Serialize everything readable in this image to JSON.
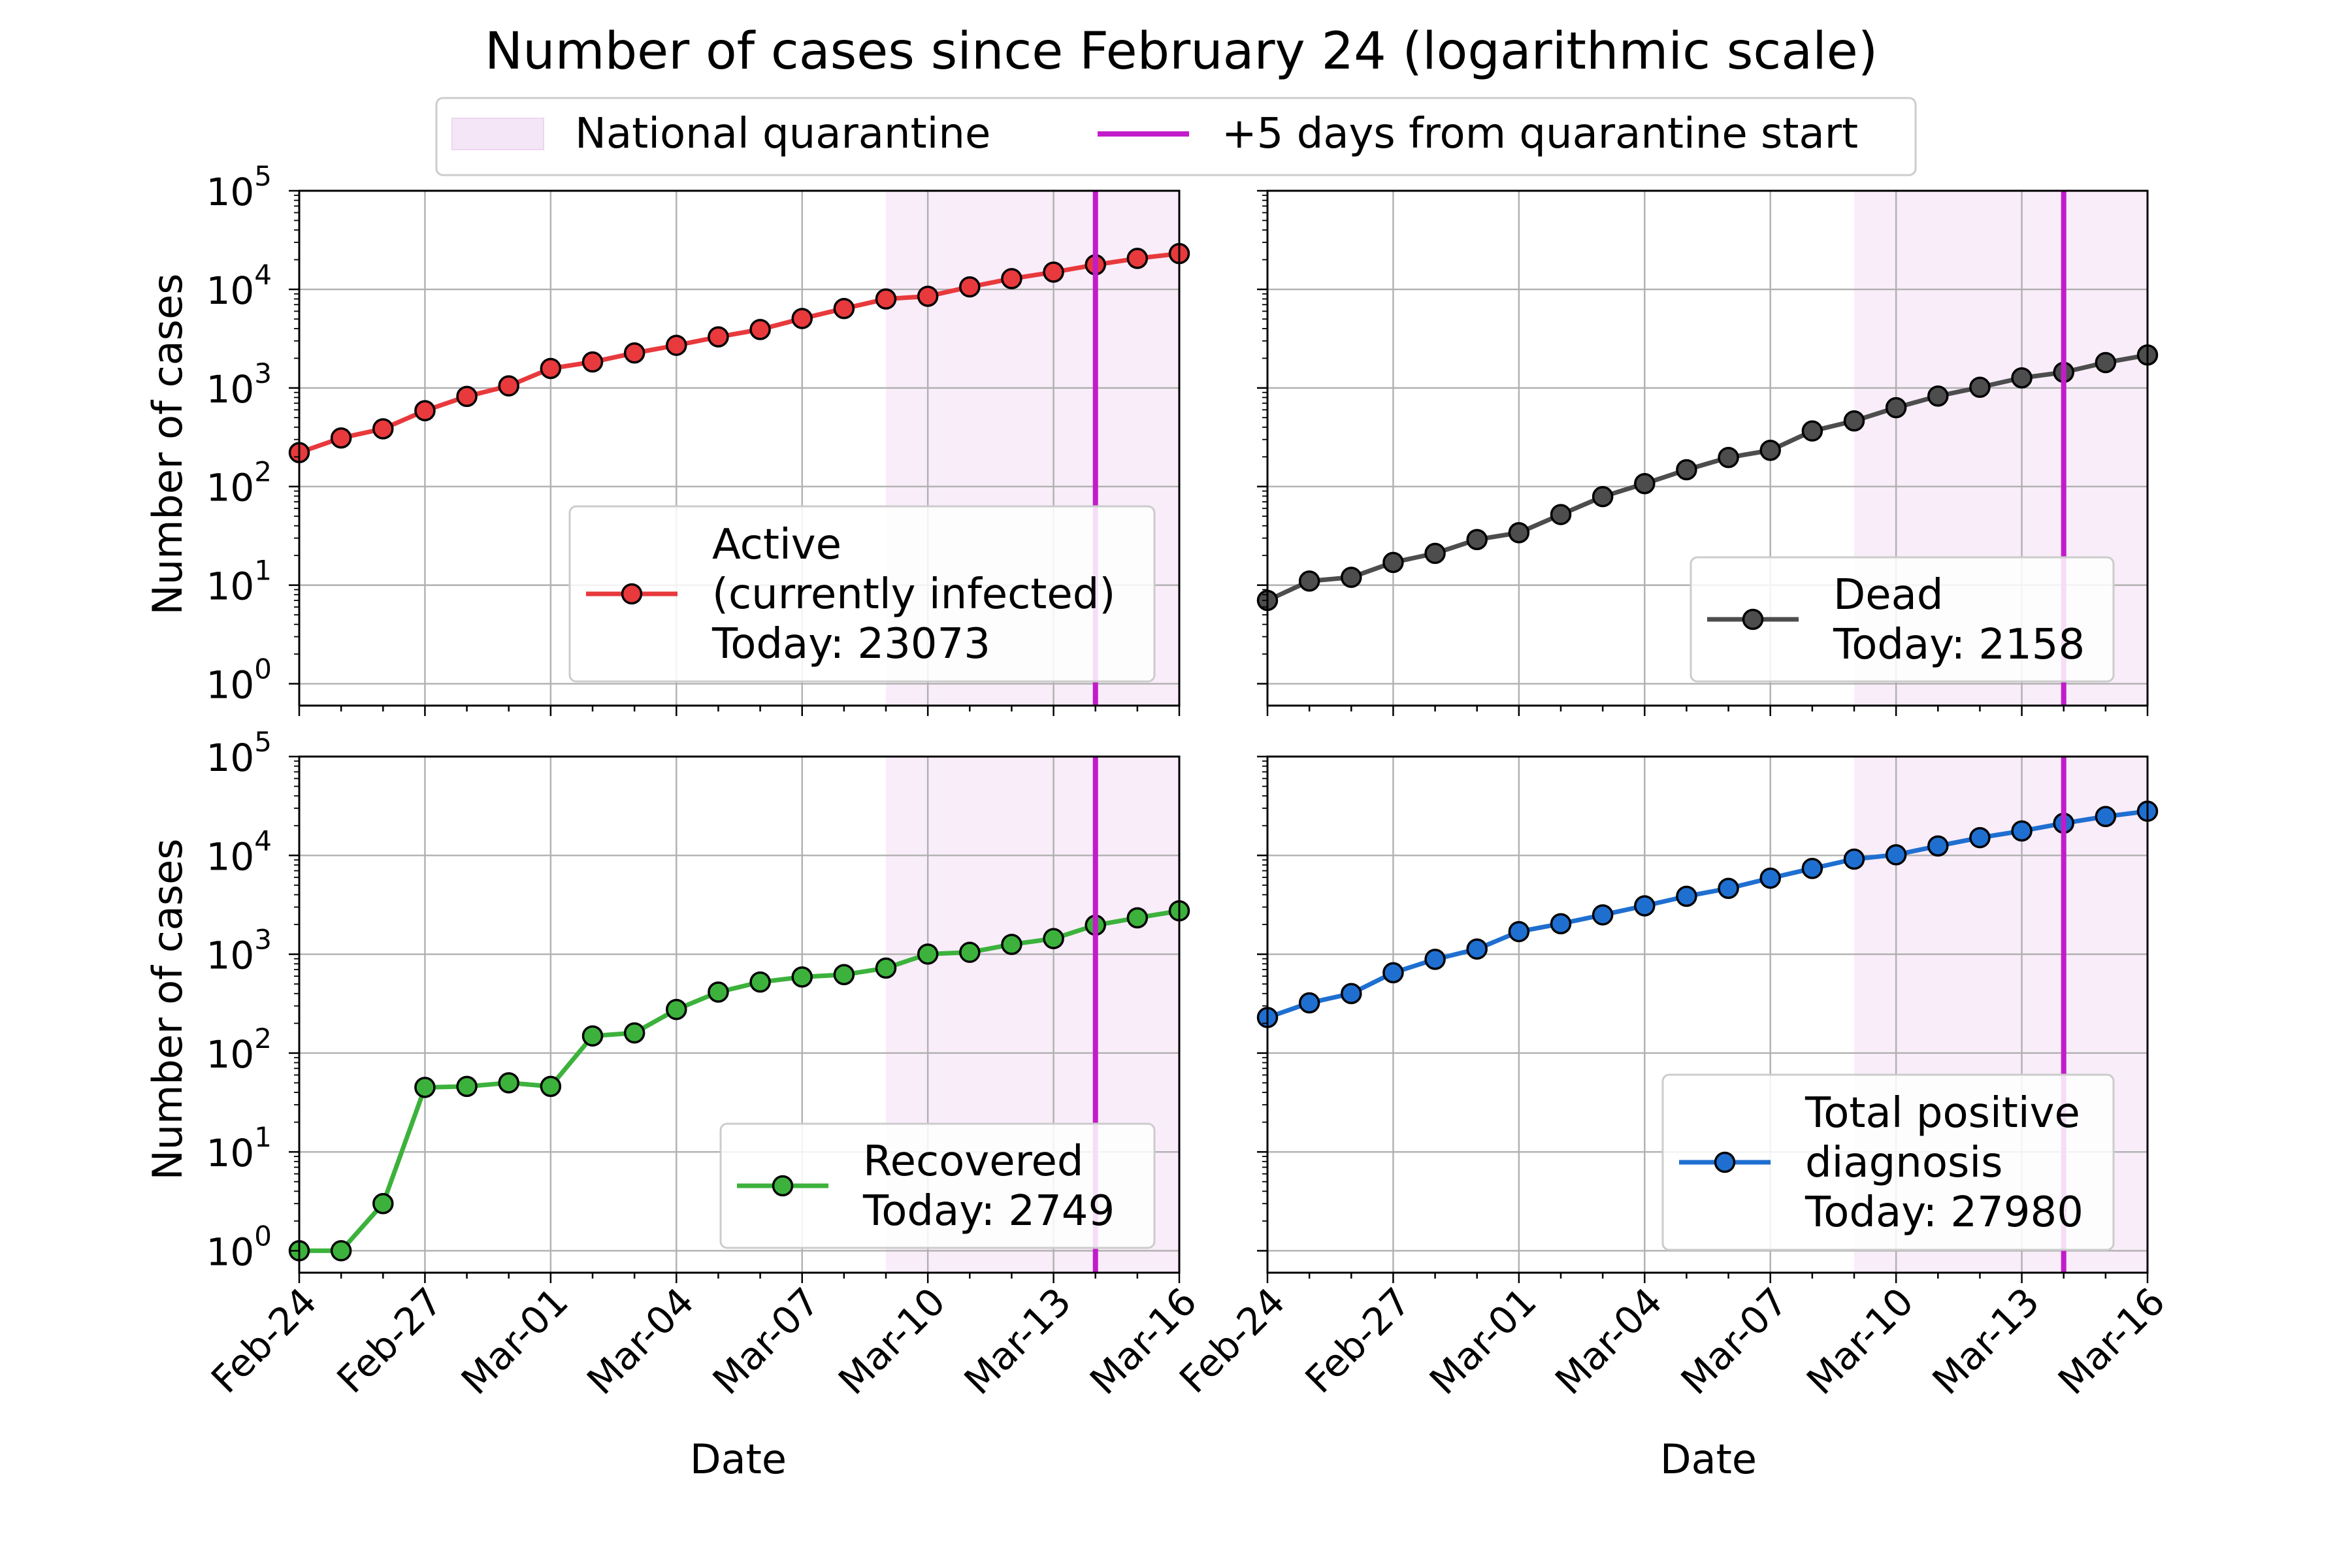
{
  "title": "Number of cases since February 24 (logarithmic scale)",
  "figure_legend": {
    "quarantine_label": "National quarantine",
    "vline_label": "+5 days from quarantine start",
    "quarantine_color": "#f5e6f7",
    "vline_color": "#c21cc9"
  },
  "x_tick_labels": [
    "Feb-24",
    "Feb-27",
    "Mar-01",
    "Mar-04",
    "Mar-07",
    "Mar-10",
    "Mar-13",
    "Mar-16"
  ],
  "x_label": "Date",
  "y_label": "Number of cases",
  "y_tick_labels": [
    "0",
    "1",
    "2",
    "3",
    "4",
    "5"
  ],
  "chart_data": [
    {
      "type": "line",
      "panel": "top-left",
      "log_y": true,
      "ylim": [
        0.6,
        100000
      ],
      "xlim": [
        "2020-02-24",
        "2020-03-16"
      ],
      "x": [
        "2020-02-24",
        "2020-02-25",
        "2020-02-26",
        "2020-02-27",
        "2020-02-28",
        "2020-02-29",
        "2020-03-01",
        "2020-03-02",
        "2020-03-03",
        "2020-03-04",
        "2020-03-05",
        "2020-03-06",
        "2020-03-07",
        "2020-03-08",
        "2020-03-09",
        "2020-03-10",
        "2020-03-11",
        "2020-03-12",
        "2020-03-13",
        "2020-03-14",
        "2020-03-15",
        "2020-03-16"
      ],
      "quarantine_start": "2020-03-09",
      "vline": "2020-03-14",
      "grid": true,
      "legend_position": "lower-right",
      "series": [
        {
          "name": "Active\n(currently infected)\nToday: 23073",
          "color": "#e8393c",
          "values": [
            221,
            311,
            385,
            588,
            821,
            1049,
            1577,
            1835,
            2263,
            2706,
            3296,
            3916,
            5061,
            6387,
            7985,
            8514,
            10590,
            12839,
            14955,
            17750,
            20603,
            23073
          ]
        }
      ]
    },
    {
      "type": "line",
      "panel": "top-right",
      "log_y": true,
      "ylim": [
        0.6,
        100000
      ],
      "xlim": [
        "2020-02-24",
        "2020-03-16"
      ],
      "x": [
        "2020-02-24",
        "2020-02-25",
        "2020-02-26",
        "2020-02-27",
        "2020-02-28",
        "2020-02-29",
        "2020-03-01",
        "2020-03-02",
        "2020-03-03",
        "2020-03-04",
        "2020-03-05",
        "2020-03-06",
        "2020-03-07",
        "2020-03-08",
        "2020-03-09",
        "2020-03-10",
        "2020-03-11",
        "2020-03-12",
        "2020-03-13",
        "2020-03-14",
        "2020-03-15",
        "2020-03-16"
      ],
      "quarantine_start": "2020-03-09",
      "vline": "2020-03-14",
      "grid": true,
      "legend_position": "lower-right",
      "series": [
        {
          "name": "Dead\nToday: 2158",
          "color": "#4d4d4d",
          "values": [
            7,
            11,
            12,
            17,
            21,
            29,
            34,
            52,
            79,
            107,
            148,
            197,
            233,
            366,
            463,
            631,
            827,
            1016,
            1266,
            1441,
            1809,
            2158
          ]
        }
      ]
    },
    {
      "type": "line",
      "panel": "bottom-left",
      "log_y": true,
      "ylim": [
        0.6,
        100000
      ],
      "xlim": [
        "2020-02-24",
        "2020-03-16"
      ],
      "x": [
        "2020-02-24",
        "2020-02-25",
        "2020-02-26",
        "2020-02-27",
        "2020-02-28",
        "2020-02-29",
        "2020-03-01",
        "2020-03-02",
        "2020-03-03",
        "2020-03-04",
        "2020-03-05",
        "2020-03-06",
        "2020-03-07",
        "2020-03-08",
        "2020-03-09",
        "2020-03-10",
        "2020-03-11",
        "2020-03-12",
        "2020-03-13",
        "2020-03-14",
        "2020-03-15",
        "2020-03-16"
      ],
      "quarantine_start": "2020-03-09",
      "vline": "2020-03-14",
      "grid": true,
      "legend_position": "lower-right",
      "series": [
        {
          "name": "Recovered\nToday: 2749",
          "color": "#3cb23c",
          "values": [
            1,
            1,
            3,
            45,
            46,
            50,
            46,
            149,
            160,
            276,
            414,
            523,
            589,
            622,
            724,
            1004,
            1045,
            1258,
            1439,
            1966,
            2335,
            2749
          ]
        }
      ]
    },
    {
      "type": "line",
      "panel": "bottom-right",
      "log_y": true,
      "ylim": [
        0.6,
        100000
      ],
      "xlim": [
        "2020-02-24",
        "2020-03-16"
      ],
      "x": [
        "2020-02-24",
        "2020-02-25",
        "2020-02-26",
        "2020-02-27",
        "2020-02-28",
        "2020-02-29",
        "2020-03-01",
        "2020-03-02",
        "2020-03-03",
        "2020-03-04",
        "2020-03-05",
        "2020-03-06",
        "2020-03-07",
        "2020-03-08",
        "2020-03-09",
        "2020-03-10",
        "2020-03-11",
        "2020-03-12",
        "2020-03-13",
        "2020-03-14",
        "2020-03-15",
        "2020-03-16"
      ],
      "quarantine_start": "2020-03-09",
      "vline": "2020-03-14",
      "grid": true,
      "legend_position": "lower-right",
      "series": [
        {
          "name": "Total positive\ndiagnosis\nToday: 27980",
          "color": "#1f6fd1",
          "values": [
            229,
            322,
            400,
            650,
            888,
            1128,
            1694,
            2036,
            2502,
            3089,
            3858,
            4636,
            5883,
            7375,
            9172,
            10149,
            12462,
            15113,
            17660,
            21157,
            24747,
            27980
          ]
        }
      ]
    }
  ]
}
